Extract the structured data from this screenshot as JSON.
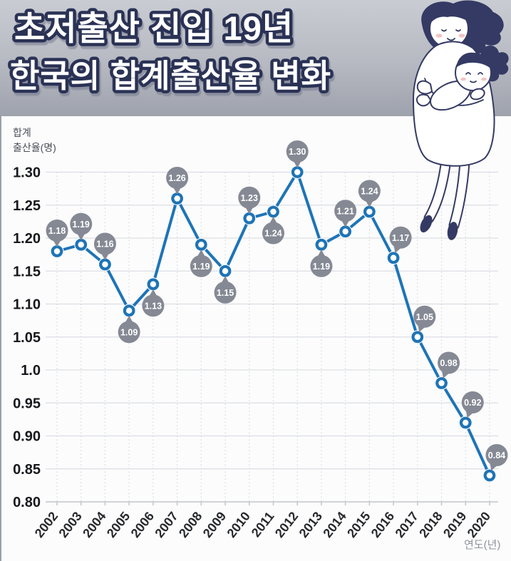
{
  "header": {
    "title_line1": "초저출산 진입 19년",
    "title_line2": "한국의 합계출산율 변화"
  },
  "illustration": {
    "name": "mother-holding-baby-line-art"
  },
  "chart_data": {
    "type": "line",
    "title": "초저출산 진입 19년 한국의 합계출산율 변화",
    "ylabel_line1": "합계",
    "ylabel_line2": "출산율(명)",
    "xlabel": "연도(년)",
    "x": [
      "2002",
      "2003",
      "2004",
      "2005",
      "2006",
      "2007",
      "2008",
      "2009",
      "2010",
      "2011",
      "2012",
      "2013",
      "2014",
      "2015",
      "2016",
      "2017",
      "2018",
      "2019",
      "2020"
    ],
    "values": [
      1.18,
      1.19,
      1.16,
      1.09,
      1.13,
      1.26,
      1.19,
      1.15,
      1.23,
      1.24,
      1.3,
      1.19,
      1.21,
      1.24,
      1.17,
      1.05,
      0.98,
      0.92,
      0.84
    ],
    "value_labels": [
      "1.18",
      "1.19",
      "1.16",
      "1.09",
      "1.13",
      "1.26",
      "1.19",
      "1.15",
      "1.23",
      "1.24",
      "1.30",
      "1.19",
      "1.21",
      "1.24",
      "1.17",
      "1.05",
      "0.98",
      "0.92",
      "0.84"
    ],
    "label_sides": [
      "above",
      "above",
      "above",
      "below",
      "below",
      "above",
      "below",
      "below",
      "above",
      "below",
      "above",
      "below",
      "above",
      "above",
      "above-right",
      "above-right",
      "above-right",
      "above-right",
      "above-right"
    ],
    "ylim": [
      0.8,
      1.3
    ],
    "yticks": [
      1.3,
      1.25,
      1.2,
      1.15,
      1.1,
      1.05,
      1.0,
      0.95,
      0.9,
      0.85,
      0.8
    ],
    "ytick_labels": [
      "1.30",
      "1.25",
      "1.20",
      "1.15",
      "1.10",
      "1.05",
      "1.0",
      "0.95",
      "0.90",
      "0.85",
      "0.80"
    ],
    "grid": true,
    "legend": false,
    "colors": {
      "line": "#1e74b6",
      "marker_fill": "#ffffff",
      "bubble": "#858994",
      "bubble_text": "#ffffff",
      "hgrid": "#dcdee2",
      "vgrid": "#d5d8dc",
      "axis": "#c2c5ca",
      "ytick_text": "#17181b",
      "xtick_text": "#28292c",
      "title_fill": "#ffffff",
      "title_outline": "#2b3055"
    }
  }
}
